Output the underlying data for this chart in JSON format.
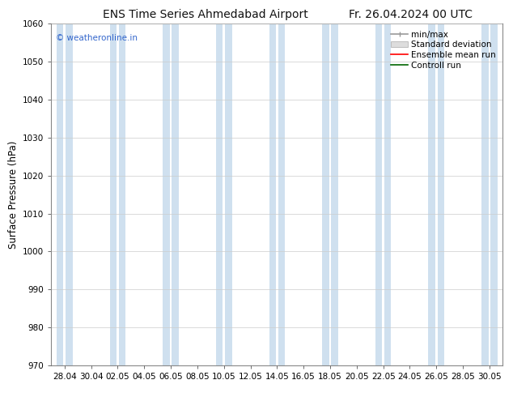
{
  "title_left": "ENS Time Series Ahmedabad Airport",
  "title_right": "Fr. 26.04.2024 00 UTC",
  "ylabel": "Surface Pressure (hPa)",
  "ylim": [
    970,
    1060
  ],
  "yticks": [
    970,
    980,
    990,
    1000,
    1010,
    1020,
    1030,
    1040,
    1050,
    1060
  ],
  "xtick_labels": [
    "28.04",
    "30.04",
    "02.05",
    "04.05",
    "06.05",
    "08.05",
    "10.05",
    "12.05",
    "14.05",
    "16.05",
    "18.05",
    "20.05",
    "22.05",
    "24.05",
    "26.05",
    "28.05",
    "30.05"
  ],
  "band_color": "#cfe0ef",
  "background_color": "#ffffff",
  "plot_bg_color": "#ffffff",
  "watermark": "© weatheronline.in",
  "watermark_color": "#3366cc",
  "legend_items": [
    {
      "label": "min/max",
      "color": "#999999",
      "lw": 1.2
    },
    {
      "label": "Standard deviation",
      "color": "#cccccc",
      "lw": 8
    },
    {
      "label": "Ensemble mean run",
      "color": "#ff0000",
      "lw": 1.2
    },
    {
      "label": "Controll run",
      "color": "#006600",
      "lw": 1.2
    }
  ],
  "title_fontsize": 10,
  "tick_fontsize": 7.5,
  "ylabel_fontsize": 8.5,
  "legend_fontsize": 7.5
}
